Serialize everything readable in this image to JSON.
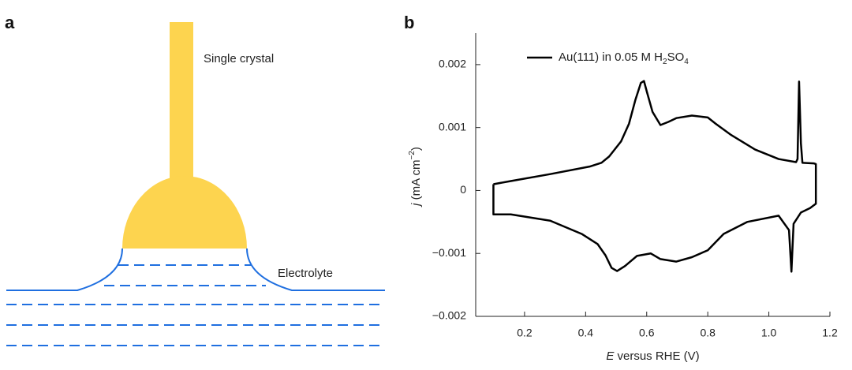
{
  "panel_a": {
    "label": "a",
    "crystal_label": "Single crystal",
    "electrolyte_label": "Electrolyte"
  },
  "chart_data": {
    "type": "line",
    "panel_label": "b",
    "xlabel": {
      "symbol": "E",
      "text": " versus RHE (V)"
    },
    "ylabel": {
      "symbol": "j",
      "text": " (mA cm",
      "superscript": "−2",
      "close": ")"
    },
    "xlim": [
      0.04,
      1.2
    ],
    "ylim": [
      -0.002,
      0.0025
    ],
    "xticks": [
      0.2,
      0.4,
      0.6,
      0.8,
      {
        "value": 1.0,
        "label": "1.0"
      },
      1.2
    ],
    "yticks": [
      {
        "value": -0.002,
        "label": "−0.002"
      },
      {
        "value": -0.001,
        "label": "−0.001"
      },
      0,
      0.001,
      0.002
    ],
    "grid": false,
    "legend": "upper left",
    "series": [
      {
        "name": "Au(111) in 0.05 M H2SO4",
        "color": "#000000",
        "x": [
          0.098,
          0.155,
          0.284,
          0.413,
          0.452,
          0.477,
          0.516,
          0.542,
          0.563,
          0.581,
          0.591,
          0.601,
          0.619,
          0.645,
          0.671,
          0.697,
          0.748,
          0.8,
          0.826,
          0.877,
          0.955,
          1.032,
          1.089,
          1.094,
          1.099,
          1.105,
          1.11,
          1.148,
          1.154,
          1.154,
          1.135,
          1.105,
          1.081,
          1.074,
          1.066,
          1.032,
          0.929,
          0.852,
          0.8,
          0.748,
          0.697,
          0.645,
          0.613,
          0.568,
          0.529,
          0.503,
          0.485,
          0.465,
          0.439,
          0.387,
          0.284,
          0.155,
          0.098,
          0.098
        ],
        "values": [
          0.0001,
          0.00015,
          0.00026,
          0.00038,
          0.00044,
          0.00054,
          0.00078,
          0.00106,
          0.00144,
          0.00171,
          0.00174,
          0.00156,
          0.00125,
          0.00104,
          0.00109,
          0.00115,
          0.00119,
          0.00116,
          0.00106,
          0.00088,
          0.00065,
          0.0005,
          0.00045,
          0.0005,
          0.00173,
          0.00075,
          0.00044,
          0.00043,
          0.00042,
          -0.00021,
          -0.00028,
          -0.00035,
          -0.00053,
          -0.00129,
          -0.00063,
          -0.0004,
          -0.0005,
          -0.00069,
          -0.00095,
          -0.00106,
          -0.00113,
          -0.00109,
          -0.001,
          -0.00104,
          -0.0012,
          -0.00128,
          -0.00123,
          -0.00103,
          -0.00085,
          -0.00069,
          -0.00048,
          -0.00038,
          -0.00038,
          0.0001
        ]
      }
    ]
  }
}
